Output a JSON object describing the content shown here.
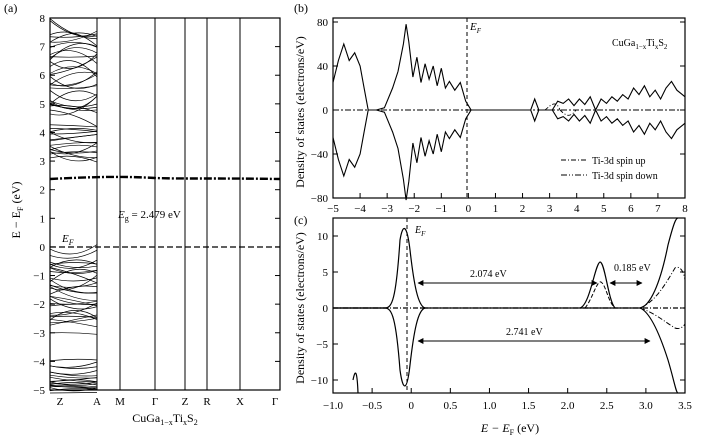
{
  "figure": {
    "panel_a": {
      "label": "(a)",
      "ylabel_main": "E − E",
      "ylabel_sub": "F",
      "ylabel_unit": " (eV)",
      "ef_label": "E",
      "ef_sub": "F",
      "gap_label_prefix": "E",
      "gap_label_sub": "g",
      "gap_label_value": " = 2.479 eV",
      "xticks": [
        "Z",
        "A",
        "M",
        "Γ",
        "Z",
        "R",
        "X",
        "Γ"
      ],
      "yticks": [
        "−5",
        "−4",
        "−3",
        "−2",
        "−1",
        "0",
        "1",
        "2",
        "3",
        "4",
        "5",
        "6",
        "7",
        "8"
      ],
      "material": {
        "base": "CuGa",
        "sub1": "1−x",
        "mid": "Ti",
        "sub2": "x",
        "end": "S",
        "sub3": "2"
      }
    },
    "panel_b": {
      "label": "(b)",
      "ylabel": "Density of states (electrons/eV)",
      "ef_label": "E",
      "ef_sub": "F",
      "material": {
        "base": "CuGa",
        "sub1": "1−x",
        "mid": "Ti",
        "sub2": "x",
        "end": "S",
        "sub3": "2"
      },
      "xticks": [
        "−5",
        "−4",
        "−3",
        "−2",
        "−1",
        "0",
        "1",
        "2",
        "3",
        "4",
        "5",
        "6",
        "7",
        "8"
      ],
      "yticks": [
        "80",
        "40",
        "0",
        "−40",
        "−80"
      ],
      "legend": [
        "Ti-3d spin up",
        "Ti-3d spin down"
      ]
    },
    "panel_c": {
      "label": "(c)",
      "ylabel": "Density of states (electrons/eV)",
      "xlabel_main": "E − E",
      "xlabel_sub": "F",
      "xlabel_unit": " (eV)",
      "ef_label": "E",
      "ef_sub": "F",
      "xticks": [
        "−1.0",
        "−0.5",
        "0",
        "0.5",
        "1.0",
        "1.5",
        "2.0",
        "2.5",
        "3.0",
        "3.5"
      ],
      "yticks": [
        "10",
        "5",
        "0",
        "−5",
        "−10"
      ],
      "annotations": [
        "2.074 eV",
        "0.185 eV",
        "2.741 eV"
      ]
    }
  }
}
